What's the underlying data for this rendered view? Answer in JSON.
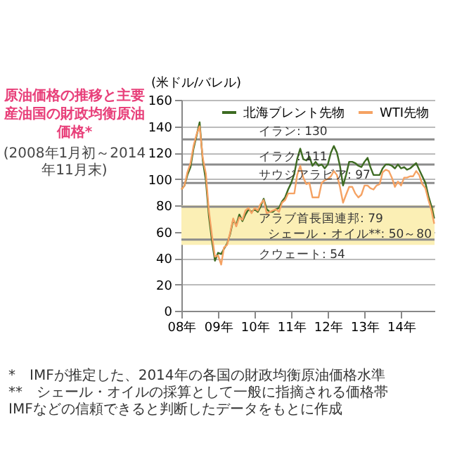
{
  "chart_data": {
    "type": "line",
    "title": "原油価格の推移と主要産油国の財政均衡原油価格*",
    "subtitle": "(2008年1月初～2014年11月末)",
    "ylabel": "(米ドル/バレル)",
    "x": [
      "2008-01",
      "2008-02",
      "2008-03",
      "2008-04",
      "2008-05",
      "2008-06",
      "2008-07",
      "2008-08",
      "2008-09",
      "2008-10",
      "2008-11",
      "2008-12",
      "2009-01",
      "2009-02",
      "2009-03",
      "2009-04",
      "2009-05",
      "2009-06",
      "2009-07",
      "2009-08",
      "2009-09",
      "2009-10",
      "2009-11",
      "2009-12",
      "2010-01",
      "2010-02",
      "2010-03",
      "2010-04",
      "2010-05",
      "2010-06",
      "2010-07",
      "2010-08",
      "2010-09",
      "2010-10",
      "2010-11",
      "2010-12",
      "2011-01",
      "2011-02",
      "2011-03",
      "2011-04",
      "2011-05",
      "2011-06",
      "2011-07",
      "2011-08",
      "2011-09",
      "2011-10",
      "2011-11",
      "2011-12",
      "2012-01",
      "2012-02",
      "2012-03",
      "2012-04",
      "2012-05",
      "2012-06",
      "2012-07",
      "2012-08",
      "2012-09",
      "2012-10",
      "2012-11",
      "2012-12",
      "2013-01",
      "2013-02",
      "2013-03",
      "2013-04",
      "2013-05",
      "2013-06",
      "2013-07",
      "2013-08",
      "2013-09",
      "2013-10",
      "2013-11",
      "2013-12",
      "2014-01",
      "2014-02",
      "2014-03",
      "2014-04",
      "2014-05",
      "2014-06",
      "2014-07",
      "2014-08",
      "2014-09",
      "2014-10",
      "2014-11",
      "2014-11-28"
    ],
    "series": [
      {
        "name": "北海ブレント先物",
        "color": "#3d6b22",
        "values": [
          92,
          95,
          103,
          109,
          123,
          133,
          143,
          114,
          99,
          72,
          53,
          38,
          44,
          43,
          47,
          51,
          58,
          69,
          65,
          73,
          68,
          73,
          77,
          75,
          77,
          75,
          79,
          85,
          77,
          75,
          75,
          77,
          78,
          83,
          86,
          92,
          97,
          104,
          115,
          123,
          115,
          114,
          117,
          110,
          113,
          110,
          111,
          108,
          111,
          120,
          125,
          120,
          110,
          95,
          103,
          113,
          113,
          112,
          110,
          109,
          113,
          116,
          109,
          103,
          103,
          103,
          108,
          111,
          111,
          110,
          108,
          111,
          108,
          109,
          107,
          108,
          110,
          112,
          107,
          102,
          97,
          87,
          79,
          70
        ]
      },
      {
        "name": "WTI先物",
        "color": "#f5a263",
        "values": [
          92,
          95,
          105,
          112,
          125,
          134,
          140,
          116,
          104,
          76,
          57,
          41,
          42,
          35,
          48,
          50,
          59,
          70,
          64,
          71,
          69,
          76,
          78,
          74,
          78,
          76,
          81,
          84,
          74,
          75,
          76,
          77,
          75,
          82,
          84,
          89,
          89,
          89,
          103,
          110,
          101,
          96,
          97,
          86,
          86,
          86,
          97,
          99,
          100,
          102,
          106,
          103,
          94,
          82,
          88,
          94,
          94,
          89,
          86,
          88,
          95,
          95,
          93,
          92,
          95,
          96,
          105,
          107,
          106,
          101,
          94,
          98,
          95,
          101,
          101,
          102,
          102,
          106,
          103,
          96,
          93,
          84,
          76,
          66
        ]
      }
    ],
    "xlim": [
      "2008-01",
      "2014-12"
    ],
    "xticks": [
      {
        "value": "2008",
        "label": "08年"
      },
      {
        "value": "2009",
        "label": "09年"
      },
      {
        "value": "2010",
        "label": "10年"
      },
      {
        "value": "2011",
        "label": "11年"
      },
      {
        "value": "2012",
        "label": "12年"
      },
      {
        "value": "2013",
        "label": "13年"
      },
      {
        "value": "2014",
        "label": "14年"
      }
    ],
    "ylim": [
      0,
      160
    ],
    "yticks": [
      0,
      20,
      40,
      60,
      80,
      100,
      120,
      140,
      160
    ],
    "grid": "y",
    "legend": "top",
    "ref_lines": [
      {
        "axis": "y",
        "value": 130,
        "label": "イラン: 130",
        "color": "#8c8c8c"
      },
      {
        "axis": "y",
        "value": 111,
        "label": "イラク: 111",
        "color": "#8c8c8c"
      },
      {
        "axis": "y",
        "value": 97,
        "label": "サウジアラビア: 97",
        "color": "#8c8c8c"
      },
      {
        "axis": "y",
        "value": 79,
        "label": "アラブ首長国連邦: 79",
        "color": "#8c8c8c"
      },
      {
        "axis": "y",
        "value": 54,
        "label": "クウェート: 54",
        "color": "#8c8c8c"
      }
    ],
    "bands": [
      {
        "axis": "y",
        "from": 50,
        "to": 80,
        "label": "シェール・オイル**: 50～80",
        "color": "#fbefb5"
      }
    ],
    "annotations": [
      "*　IMFが推定した、2014年の各国の財政均衡原油価格水準",
      "**　シェール・オイルの採算として一般に指摘される価格帯",
      "IMFなどの信頼できると判断したデータをもとに作成"
    ]
  }
}
